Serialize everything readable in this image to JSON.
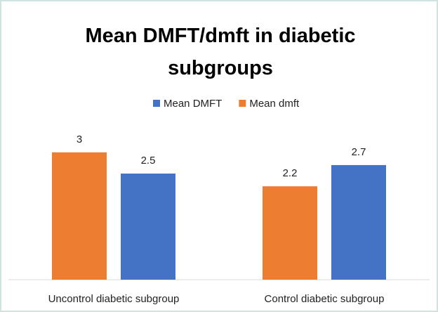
{
  "chart_data": {
    "type": "bar",
    "title": "Mean DMFT/dmft in diabetic subgroups",
    "categories": [
      "Uncontrol diabetic subgroup",
      "Control diabetic subgroup"
    ],
    "series": [
      {
        "name": "Mean DMFT",
        "color": "#4472c4",
        "values": [
          2.5,
          2.7
        ]
      },
      {
        "name": "Mean dmft",
        "color": "#ed7d31",
        "values": [
          3,
          2.2
        ]
      }
    ],
    "legend": "top"
  }
}
